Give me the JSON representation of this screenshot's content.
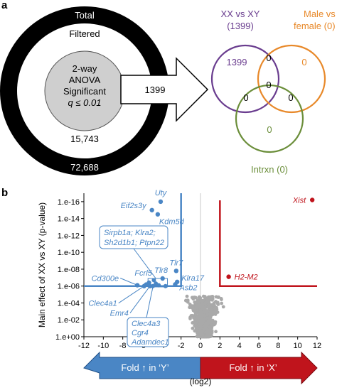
{
  "panel_a": {
    "label": "a",
    "ring_outer_label": "Total",
    "ring_outer_value": "72,688",
    "ring_mid_label": "Filtered",
    "ring_mid_value": "15,743",
    "inner_line1": "2-way",
    "inner_line2": "ANOVA",
    "inner_line3": "Significant",
    "inner_line4": "q ≤ 0.01",
    "arrow_value": "1399",
    "venn": {
      "xx_title1": "XX vs XY",
      "xx_title2": "(1399)",
      "mf_title1": "Male vs",
      "mf_title2": "female (0)",
      "intrxn_title": "Intrxn (0)",
      "xx_only": "1399",
      "mf_only": "0",
      "intrxn_only": "0",
      "xx_mf": "0",
      "xx_intrxn": "0",
      "mf_intrxn": "0",
      "center": "0",
      "colors": {
        "xx": "#6a3d8f",
        "mf": "#e8892a",
        "intrxn": "#6b8e3a"
      }
    }
  },
  "panel_b": {
    "label": "b"
  },
  "chart_data": {
    "type": "scatter",
    "xlabel": "(log2)",
    "ylabel": "Main effect of XX vs XY (p-value)",
    "xlim": [
      -12,
      12
    ],
    "ylim_exponent": [
      0,
      17
    ],
    "x_ticks": [
      -12,
      -10,
      -8,
      -6,
      -4,
      -2,
      0,
      2,
      4,
      6,
      8,
      10,
      12
    ],
    "y_ticks": [
      "1.e+00",
      "1.e-02",
      "1.e-04",
      "1.e-06",
      "1.e-08",
      "1.e-10",
      "1.e-12",
      "1.e-14",
      "1.e-16"
    ],
    "y_scale": "log (-log10 p)",
    "threshold_x": 2,
    "threshold_y": "1.e-06",
    "colors": {
      "y_side": "#4a86c5",
      "x_side": "#c0141c",
      "background": "#a9a9a9"
    },
    "labeled_points": [
      {
        "name": "Uty",
        "x": -4.1,
        "y": 16.0,
        "side": "Y"
      },
      {
        "name": "Eif2s3y",
        "x": -5.0,
        "y": 15.0,
        "side": "Y"
      },
      {
        "name": "Kdm5d",
        "x": -4.4,
        "y": 14.5,
        "side": "Y"
      },
      {
        "name": "Tlr7",
        "x": -2.5,
        "y": 7.8,
        "side": "Y"
      },
      {
        "name": "Tlr8",
        "x": -3.9,
        "y": 6.9,
        "side": "Y"
      },
      {
        "name": "Klra17",
        "x": -2.4,
        "y": 6.5,
        "side": "Y"
      },
      {
        "name": "Asb2",
        "x": -2.6,
        "y": 6.2,
        "side": "Y"
      },
      {
        "name": "Fcrl5",
        "x": -5.3,
        "y": 6.4,
        "side": "Y"
      },
      {
        "name": "Cd300e",
        "x": -6.5,
        "y": 6.1,
        "side": "Y"
      },
      {
        "name": "Clec4a1",
        "x": -5.8,
        "y": 6.0,
        "side": "Y"
      },
      {
        "name": "Emr4",
        "x": -5.2,
        "y": 6.0,
        "side": "Y"
      },
      {
        "name": "Xist",
        "x": 11.5,
        "y": 16.2,
        "side": "X"
      },
      {
        "name": "H2-M2",
        "x": 2.9,
        "y": 7.1,
        "side": "X"
      }
    ],
    "other_y_points": [
      {
        "x": -4.8,
        "y": 6.7
      },
      {
        "x": -4.6,
        "y": 6.3
      },
      {
        "x": -4.9,
        "y": 6.0
      },
      {
        "x": -3.6,
        "y": 6.0
      },
      {
        "x": -4.3,
        "y": 6.1
      },
      {
        "x": -5.6,
        "y": 6.2
      }
    ],
    "annotations": [
      {
        "text1": "Sirpb1a; Klra2;",
        "text2": "Sh2d1b1; Ptpn22"
      },
      {
        "text1": "Clec4a3",
        "text2": "Cgr4",
        "text3": "Adamdec1"
      }
    ],
    "arrow_left_label": "Fold ↑ in ‘Y’",
    "arrow_right_label": "Fold ↑ in ‘X’"
  }
}
